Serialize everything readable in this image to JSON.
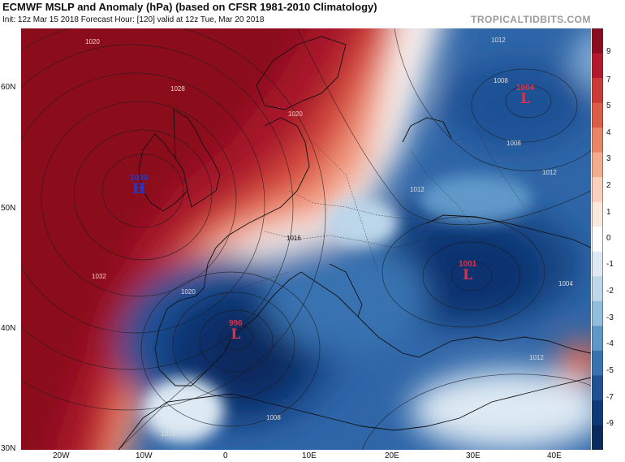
{
  "header": {
    "title": "ECMWF MSLP and Anomaly (hPa) (based on CFSR 1981-2010 Climatology)",
    "subtitle": "Init: 12z Mar 15 2018   Forecast Hour: [120]   valid at 12z Tue, Mar 20 2018",
    "site": "TROPICALTIDBITS.COM"
  },
  "axes": {
    "lat_labels": [
      "60N",
      "50N",
      "40N",
      "30N"
    ],
    "lon_labels": [
      "20W",
      "10W",
      "0",
      "10E",
      "20E",
      "30E",
      "40E"
    ]
  },
  "colorbar": {
    "ticks": [
      "9",
      "7",
      "5",
      "4",
      "3",
      "2",
      "1",
      "0",
      "-1",
      "-2",
      "-3",
      "-4",
      "-5",
      "-7",
      "-9"
    ],
    "colors": [
      "#8b0c1f",
      "#b3182b",
      "#cc3a35",
      "#dd5c45",
      "#ea8566",
      "#f3ac8e",
      "#f9d0bb",
      "#fbe9de",
      "#ffffff",
      "#dde9f3",
      "#bcd6ea",
      "#92bedd",
      "#5e98c9",
      "#3872b0",
      "#1f5195",
      "#0f3a7a",
      "#082a5e"
    ]
  },
  "pressure_centers": [
    {
      "type": "H",
      "value": "1034",
      "color": "#1a3dd6"
    },
    {
      "type": "L",
      "value": "1004",
      "color": "#e0304a"
    },
    {
      "type": "L",
      "value": "1001",
      "color": "#e0304a"
    },
    {
      "type": "L",
      "value": "996",
      "color": "#e0304a"
    }
  ],
  "isobar_labels": [
    "1020",
    "1028",
    "1032",
    "1020",
    "1016",
    "1012",
    "1008",
    "1012",
    "1008",
    "1012",
    "1020",
    "1016",
    "1012",
    "1008",
    "1004"
  ]
}
